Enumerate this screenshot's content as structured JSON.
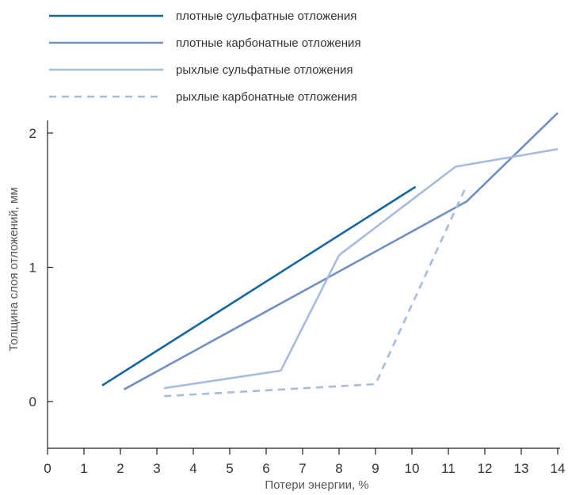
{
  "chart_data": {
    "type": "line",
    "xlabel": "Потери энергии, %",
    "ylabel": "Толщина слоя отложений, мм",
    "xlim": [
      0,
      14
    ],
    "ylim": [
      -0.35,
      2.12
    ],
    "xticks": [
      "0",
      "1",
      "2",
      "3",
      "4",
      "5",
      "6",
      "7",
      "8",
      "9",
      "10",
      "11",
      "12",
      "13",
      "14"
    ],
    "yticks": [
      "0",
      "1",
      "2"
    ],
    "grid": false,
    "legend_position": "top-left",
    "series": [
      {
        "name": "плотные сульфатные отложения",
        "color": "#1565a0",
        "dashed": false,
        "points": [
          [
            1.5,
            0.12
          ],
          [
            10.1,
            1.6
          ]
        ]
      },
      {
        "name": "плотные карбонатные отложения",
        "color": "#6f8fc4",
        "dashed": false,
        "points": [
          [
            2.1,
            0.09
          ],
          [
            11.5,
            1.49
          ],
          [
            14.0,
            2.15
          ]
        ]
      },
      {
        "name": "рыхлые сульфатные отложения",
        "color": "#a7bbdf",
        "dashed": false,
        "points": [
          [
            3.2,
            0.1
          ],
          [
            6.4,
            0.23
          ],
          [
            8.0,
            1.09
          ],
          [
            11.2,
            1.75
          ],
          [
            14.0,
            1.88
          ]
        ]
      },
      {
        "name": "рыхлые карбонатные отложения",
        "color": "#a7bbdf",
        "dashed": true,
        "points": [
          [
            3.2,
            0.04
          ],
          [
            9.0,
            0.13
          ],
          [
            11.5,
            1.61
          ]
        ]
      }
    ]
  }
}
